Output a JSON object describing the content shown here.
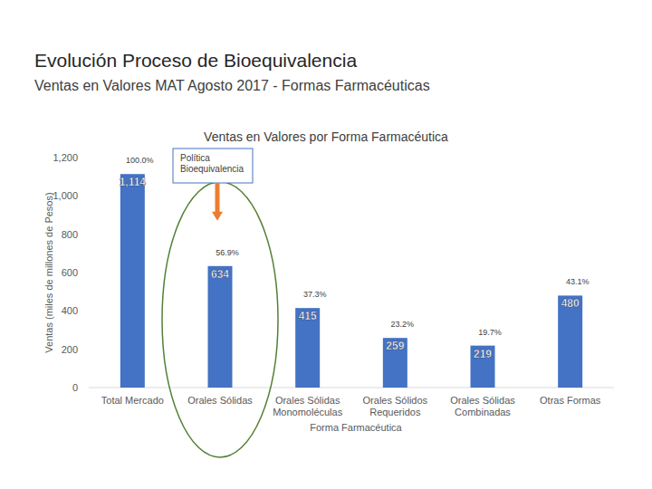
{
  "header": {
    "title": "Evolución Proceso de Bioequivalencia",
    "subtitle": "Ventas en Valores MAT Agosto 2017 - Formas Farmacéuticas"
  },
  "chart_data": {
    "type": "bar",
    "title": "Ventas en Valores por Forma Farmacéutica",
    "x_label": "Forma Farmacéutica",
    "y_label": "Ventas (miles de millones de Pesos)",
    "categories": [
      "Total Mercado",
      "Orales Sólidas",
      "Orales Sólidas Monomoléculas",
      "Orales Sólidos Requeridos",
      "Orales Sólidas Combinadas",
      "Otras Formas"
    ],
    "values": [
      1114,
      634,
      415,
      259,
      219,
      480
    ],
    "value_labels": [
      "1,114",
      "634",
      "415",
      "259",
      "219",
      "480"
    ],
    "share_labels": [
      "100.0%",
      "56.9%",
      "37.3%",
      "23.2%",
      "19.7%",
      "43.1%"
    ],
    "color": "#4472c4",
    "ylim": [
      0,
      1200
    ],
    "yticks": [
      0,
      200,
      400,
      600,
      800,
      {
        "value": 1000,
        "label": "1,000"
      },
      {
        "value": 1200,
        "label": "1,200"
      }
    ],
    "grid": false,
    "data_labels": true,
    "annotations": [
      {
        "text": "Política Bioequivalencia",
        "target": "Orales Sólidas"
      }
    ]
  }
}
